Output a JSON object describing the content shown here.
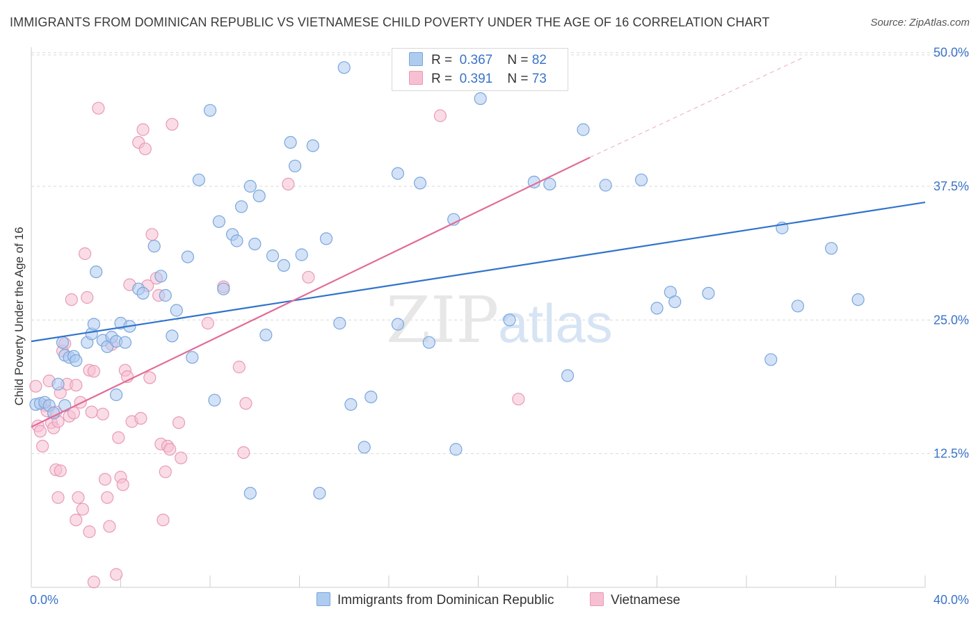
{
  "title": "IMMIGRANTS FROM DOMINICAN REPUBLIC VS VIETNAMESE CHILD POVERTY UNDER THE AGE OF 16 CORRELATION CHART",
  "source": "Source: ZipAtlas.com",
  "watermark": {
    "zip": "ZIP",
    "atlas": "atlas"
  },
  "colors": {
    "blue_fill": "#aecbf0",
    "blue_stroke": "#7aa6dc",
    "blue_line": "#2f73cc",
    "pink_fill": "#f6c0d2",
    "pink_stroke": "#e89ab5",
    "pink_line": "#e26b97",
    "grid": "#d9d9d9",
    "axis_label": "#3a73c8"
  },
  "legend": {
    "rows": [
      {
        "r_label": "R =",
        "r_value": "0.367",
        "n_label": "N =",
        "n_value": "82",
        "series": "blue"
      },
      {
        "r_label": "R =",
        "r_value": "0.391",
        "n_label": "N =",
        "n_value": "73",
        "series": "pink"
      }
    ]
  },
  "chart_data": {
    "type": "scatter",
    "title": "IMMIGRANTS FROM DOMINICAN REPUBLIC VS VIETNAMESE CHILD POVERTY UNDER THE AGE OF 16 CORRELATION CHART",
    "xlabel": "",
    "ylabel": "Child Poverty Under the Age of 16",
    "xlim": [
      0,
      40
    ],
    "ylim": [
      0,
      50.5
    ],
    "x_tick_labels": [
      {
        "value": 0,
        "label": "0.0%"
      },
      {
        "value": 40,
        "label": "40.0%"
      }
    ],
    "y_tick_labels": [
      {
        "value": 12.5,
        "label": "12.5%"
      },
      {
        "value": 25.0,
        "label": "25.0%"
      },
      {
        "value": 37.5,
        "label": "37.5%"
      },
      {
        "value": 50.0,
        "label": "50.0%"
      }
    ],
    "series": [
      {
        "name": "Immigrants from Dominican Republic",
        "color": "blue",
        "trend": {
          "x0": 0,
          "y0": 23.0,
          "x1": 40,
          "y1": 36.0,
          "dashed_to": null
        },
        "points": [
          [
            0.2,
            17.1
          ],
          [
            0.4,
            17.2
          ],
          [
            0.6,
            17.3
          ],
          [
            0.8,
            17.0
          ],
          [
            1.0,
            16.3
          ],
          [
            1.2,
            19.0
          ],
          [
            1.5,
            17.0
          ],
          [
            1.4,
            22.9
          ],
          [
            1.5,
            21.7
          ],
          [
            1.7,
            21.5
          ],
          [
            1.9,
            21.6
          ],
          [
            2.0,
            21.2
          ],
          [
            2.5,
            22.9
          ],
          [
            2.7,
            23.7
          ],
          [
            2.8,
            24.6
          ],
          [
            2.9,
            29.5
          ],
          [
            3.2,
            23.1
          ],
          [
            3.4,
            22.5
          ],
          [
            3.6,
            23.4
          ],
          [
            3.8,
            23.0
          ],
          [
            3.8,
            18.0
          ],
          [
            4.0,
            24.7
          ],
          [
            4.2,
            22.9
          ],
          [
            4.4,
            24.4
          ],
          [
            4.8,
            27.9
          ],
          [
            5.0,
            27.5
          ],
          [
            5.5,
            31.9
          ],
          [
            5.8,
            29.1
          ],
          [
            6.0,
            27.3
          ],
          [
            6.3,
            23.5
          ],
          [
            6.5,
            25.9
          ],
          [
            7.0,
            30.9
          ],
          [
            7.2,
            21.5
          ],
          [
            7.5,
            38.1
          ],
          [
            8.0,
            44.6
          ],
          [
            8.2,
            17.5
          ],
          [
            8.4,
            34.2
          ],
          [
            8.6,
            27.9
          ],
          [
            9.0,
            33.0
          ],
          [
            9.2,
            32.4
          ],
          [
            9.4,
            35.6
          ],
          [
            9.8,
            37.5
          ],
          [
            10.0,
            32.1
          ],
          [
            10.2,
            36.6
          ],
          [
            10.5,
            23.6
          ],
          [
            10.8,
            31.0
          ],
          [
            11.3,
            30.1
          ],
          [
            11.6,
            41.6
          ],
          [
            11.8,
            39.4
          ],
          [
            12.1,
            31.1
          ],
          [
            12.6,
            41.3
          ],
          [
            13.2,
            32.6
          ],
          [
            13.8,
            24.7
          ],
          [
            14.0,
            48.6
          ],
          [
            14.3,
            17.1
          ],
          [
            14.9,
            13.1
          ],
          [
            15.2,
            17.8
          ],
          [
            16.4,
            24.6
          ],
          [
            17.4,
            37.8
          ],
          [
            17.8,
            22.9
          ],
          [
            18.9,
            34.4
          ],
          [
            20.1,
            45.7
          ],
          [
            21.4,
            25.0
          ],
          [
            22.5,
            37.9
          ],
          [
            23.2,
            37.7
          ],
          [
            24.0,
            19.8
          ],
          [
            24.7,
            42.8
          ],
          [
            25.7,
            37.6
          ],
          [
            27.3,
            38.1
          ],
          [
            28.0,
            26.1
          ],
          [
            28.6,
            27.6
          ],
          [
            28.8,
            26.7
          ],
          [
            30.3,
            27.5
          ],
          [
            33.1,
            21.3
          ],
          [
            33.6,
            33.6
          ],
          [
            34.3,
            26.3
          ],
          [
            35.8,
            31.7
          ],
          [
            37.0,
            26.9
          ],
          [
            9.8,
            8.8
          ],
          [
            12.9,
            8.8
          ],
          [
            16.4,
            38.7
          ],
          [
            19.0,
            12.9
          ]
        ]
      },
      {
        "name": "Vietnamese",
        "color": "pink",
        "trend": {
          "x0": 0,
          "y0": 15.0,
          "x1": 25.0,
          "y1": 40.2,
          "dashed_to": {
            "x": 34.5,
            "y": 49.5
          }
        },
        "points": [
          [
            0.2,
            18.8
          ],
          [
            0.3,
            15.1
          ],
          [
            0.4,
            14.6
          ],
          [
            0.5,
            13.2
          ],
          [
            0.6,
            17.0
          ],
          [
            0.7,
            16.5
          ],
          [
            0.8,
            19.3
          ],
          [
            0.9,
            15.4
          ],
          [
            1.0,
            14.9
          ],
          [
            1.1,
            16.4
          ],
          [
            1.2,
            15.5
          ],
          [
            1.3,
            18.2
          ],
          [
            1.4,
            22.1
          ],
          [
            1.5,
            22.8
          ],
          [
            1.6,
            19.0
          ],
          [
            1.7,
            16.0
          ],
          [
            1.8,
            26.9
          ],
          [
            1.9,
            16.3
          ],
          [
            2.0,
            18.9
          ],
          [
            2.2,
            17.3
          ],
          [
            2.4,
            31.2
          ],
          [
            2.5,
            27.1
          ],
          [
            2.6,
            20.3
          ],
          [
            2.7,
            16.4
          ],
          [
            2.8,
            20.2
          ],
          [
            3.0,
            44.8
          ],
          [
            3.2,
            16.2
          ],
          [
            3.3,
            10.1
          ],
          [
            3.4,
            8.4
          ],
          [
            3.5,
            5.7
          ],
          [
            3.6,
            22.7
          ],
          [
            3.8,
            1.2
          ],
          [
            3.9,
            14.0
          ],
          [
            4.0,
            10.3
          ],
          [
            4.1,
            9.6
          ],
          [
            4.2,
            20.3
          ],
          [
            4.3,
            19.7
          ],
          [
            4.4,
            28.3
          ],
          [
            4.5,
            15.5
          ],
          [
            4.8,
            41.6
          ],
          [
            4.9,
            15.8
          ],
          [
            5.0,
            42.8
          ],
          [
            5.1,
            41.0
          ],
          [
            5.2,
            28.2
          ],
          [
            5.3,
            19.6
          ],
          [
            5.4,
            33.0
          ],
          [
            5.6,
            28.9
          ],
          [
            5.7,
            27.3
          ],
          [
            5.8,
            13.4
          ],
          [
            5.9,
            6.3
          ],
          [
            6.0,
            10.8
          ],
          [
            6.1,
            13.2
          ],
          [
            6.2,
            12.9
          ],
          [
            6.3,
            43.3
          ],
          [
            6.6,
            15.4
          ],
          [
            6.7,
            12.1
          ],
          [
            1.1,
            11.0
          ],
          [
            1.2,
            8.4
          ],
          [
            2.1,
            8.4
          ],
          [
            2.3,
            7.3
          ],
          [
            2.0,
            6.3
          ],
          [
            2.6,
            5.2
          ],
          [
            2.8,
            0.5
          ],
          [
            8.6,
            28.1
          ],
          [
            9.3,
            20.6
          ],
          [
            9.5,
            12.6
          ],
          [
            9.6,
            17.2
          ],
          [
            11.5,
            37.7
          ],
          [
            12.4,
            29.0
          ],
          [
            18.3,
            44.1
          ],
          [
            21.8,
            17.6
          ],
          [
            7.9,
            24.7
          ],
          [
            1.3,
            10.9
          ]
        ]
      }
    ]
  },
  "bottom_legend": [
    {
      "label": "Immigrants from Dominican Republic",
      "series": "blue"
    },
    {
      "label": "Vietnamese",
      "series": "pink"
    }
  ]
}
